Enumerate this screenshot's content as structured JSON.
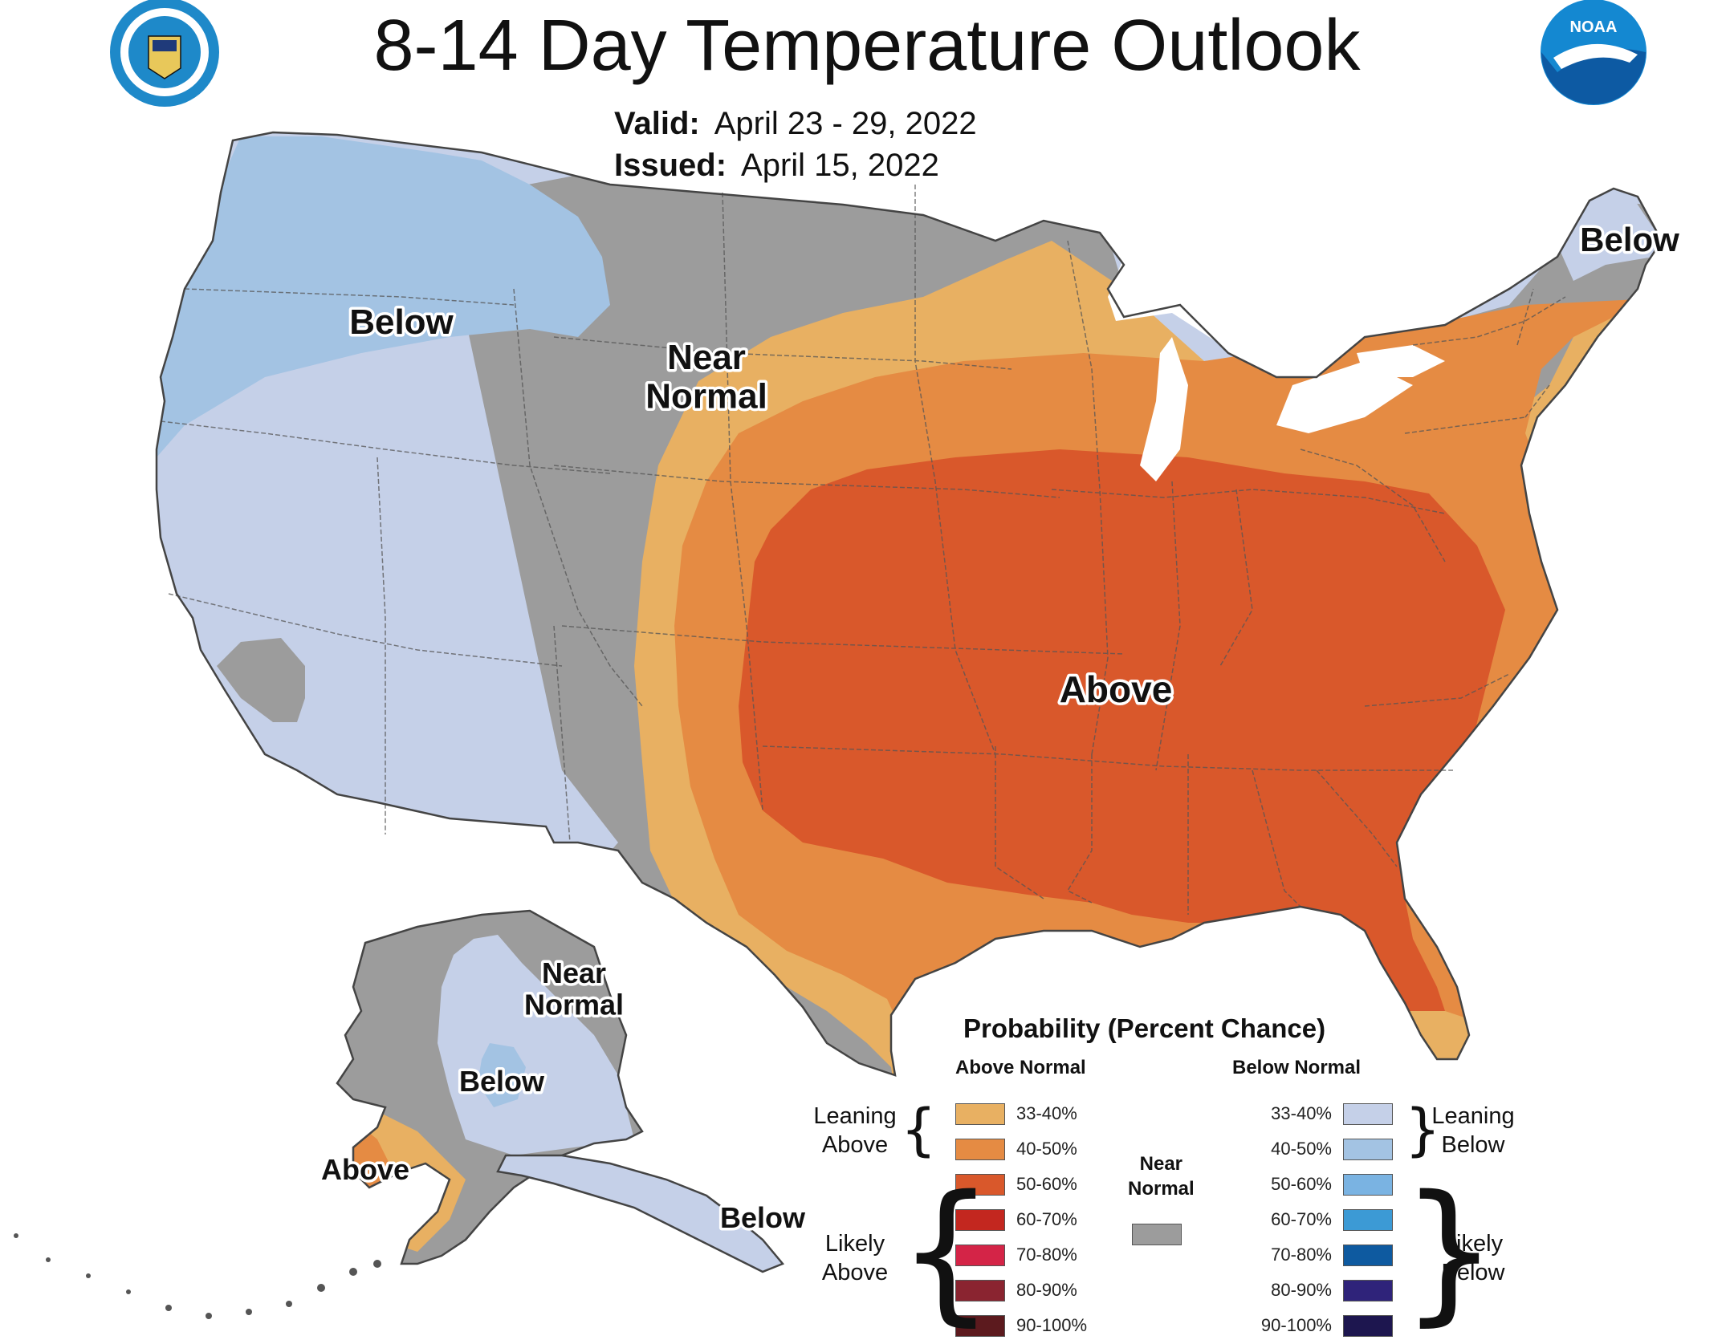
{
  "title": "8-14 Day Temperature Outlook",
  "valid": {
    "label": "Valid:",
    "value": "April 23 - 29, 2022"
  },
  "issued": {
    "label": "Issued:",
    "value": "April 15, 2022"
  },
  "logos": {
    "left": "department-of-commerce-seal",
    "right": "noaa-logo",
    "noaa_text": "NOAA"
  },
  "colors": {
    "near_normal": "#9c9c9c",
    "above_33_40": "#e8b062",
    "above_40_50": "#e58b43",
    "above_50_60": "#d9582b",
    "above_60_70": "#c3271f",
    "above_70_80": "#d42447",
    "above_80_90": "#8a2430",
    "above_90_100": "#5c1a1e",
    "below_33_40": "#c5d0e8",
    "below_40_50": "#a3c3e3",
    "below_50_60": "#7ab3e2",
    "below_60_70": "#3c9ad5",
    "below_70_80": "#0e5aa0",
    "below_80_90": "#2f237a",
    "below_90_100": "#1d164f",
    "border": "#555555"
  },
  "regions": {
    "northwest_below": "Below",
    "plains_near": "Near\nNormal",
    "central_above": "Above",
    "maine_below": "Below",
    "alaska_near": "Near\nNormal",
    "alaska_below": "Below",
    "alaska_above": "Above",
    "panhandle_below": "Below"
  },
  "legend": {
    "title": "Probability (Percent Chance)",
    "above_head": "Above Normal",
    "below_head": "Below Normal",
    "near_normal": "Near\nNormal",
    "leaning_above": "Leaning\nAbove",
    "likely_above": "Likely\nAbove",
    "leaning_below": "Leaning\nBelow",
    "likely_below": "Likely\nBelow",
    "above": [
      {
        "range": "33-40%",
        "color": "#e8b062"
      },
      {
        "range": "40-50%",
        "color": "#e58b43"
      },
      {
        "range": "50-60%",
        "color": "#d9582b"
      },
      {
        "range": "60-70%",
        "color": "#c3271f"
      },
      {
        "range": "70-80%",
        "color": "#d42447"
      },
      {
        "range": "80-90%",
        "color": "#8a2430"
      },
      {
        "range": "90-100%",
        "color": "#5c1a1e"
      }
    ],
    "below": [
      {
        "range": "33-40%",
        "color": "#c5d0e8"
      },
      {
        "range": "40-50%",
        "color": "#a3c3e3"
      },
      {
        "range": "50-60%",
        "color": "#7ab3e2"
      },
      {
        "range": "60-70%",
        "color": "#3c9ad5"
      },
      {
        "range": "70-80%",
        "color": "#0e5aa0"
      },
      {
        "range": "80-90%",
        "color": "#2f237a"
      },
      {
        "range": "90-100%",
        "color": "#1d164f"
      }
    ]
  }
}
